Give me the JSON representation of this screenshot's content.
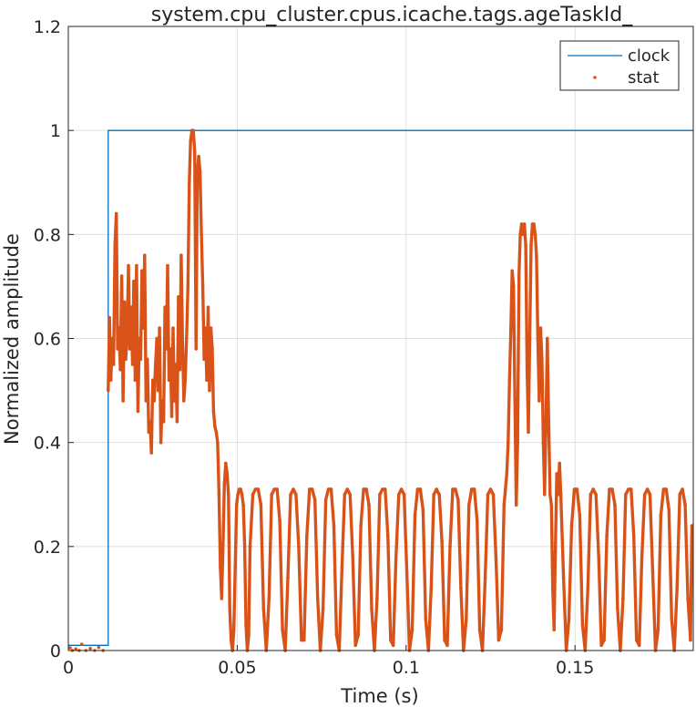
{
  "chart_data": {
    "type": "line",
    "title": "system.cpu_cluster.cpus.icache.tags.ageTaskId_",
    "xlabel": "Time (s)",
    "ylabel": "Normalized amplitude",
    "xlim": [
      0,
      0.185
    ],
    "ylim": [
      0,
      1.2
    ],
    "xticks": [
      0,
      0.05,
      0.1,
      0.15
    ],
    "xtick_labels": [
      "0",
      "0.05",
      "0.1",
      "0.15"
    ],
    "yticks": [
      0,
      0.2,
      0.4,
      0.6,
      0.8,
      1,
      1.2
    ],
    "ytick_labels": [
      "0",
      "0.2",
      "0.4",
      "0.6",
      "0.8",
      "1",
      "1.2"
    ],
    "grid": true,
    "legend_position": "top-right",
    "colors": {
      "clock": "#0072bd",
      "stat": "#d95319",
      "grid": "#dfdfdf",
      "axis": "#262626"
    },
    "series": [
      {
        "name": "clock",
        "style": "line",
        "x": [
          0,
          0.0118,
          0.0118,
          0.185
        ],
        "y": [
          0.01,
          0.01,
          1.0,
          1.0
        ]
      },
      {
        "name": "stat",
        "style": "points",
        "segments": [
          {
            "x": [
              0.0118,
              0.0122,
              0.0126,
              0.013,
              0.0134,
              0.0138,
              0.0142,
              0.0146,
              0.015,
              0.0154,
              0.0158,
              0.0162,
              0.0166,
              0.017,
              0.0174,
              0.0178,
              0.0182,
              0.0186,
              0.019,
              0.0194,
              0.0198,
              0.0202,
              0.0206,
              0.021,
              0.0214,
              0.0218,
              0.0222,
              0.0226,
              0.023,
              0.0234,
              0.0238,
              0.0242,
              0.0246,
              0.025,
              0.0254,
              0.0258,
              0.0262,
              0.0266,
              0.027,
              0.0274,
              0.0278,
              0.0282,
              0.0286,
              0.029,
              0.0294,
              0.0298,
              0.0302,
              0.0306,
              0.031,
              0.0314,
              0.0318,
              0.0322,
              0.0326,
              0.033,
              0.0334,
              0.0338,
              0.0342,
              0.0346,
              0.035,
              0.0354,
              0.0358,
              0.0362,
              0.0366,
              0.037,
              0.0374,
              0.0378,
              0.0382,
              0.0386,
              0.039,
              0.0394,
              0.0398,
              0.0402,
              0.0406,
              0.041,
              0.0414,
              0.0418,
              0.0422,
              0.0426,
              0.043,
              0.0434,
              0.0438,
              0.0442,
              0.0446,
              0.045,
              0.0454,
              0.0458,
              0.0462,
              0.0466,
              0.047,
              0.0474,
              0.0478,
              0.0482,
              0.0486,
              0.049,
              0.0494,
              0.0498,
              0.0502,
              0.0506,
              0.051,
              0.0514,
              0.0518,
              0.0522,
              0.0526,
              0.053,
              0.0534,
              0.0538
            ],
            "y": [
              0.5,
              0.64,
              0.52,
              0.6,
              0.55,
              0.78,
              0.84,
              0.58,
              0.62,
              0.54,
              0.72,
              0.48,
              0.67,
              0.56,
              0.6,
              0.74,
              0.58,
              0.66,
              0.55,
              0.71,
              0.52,
              0.74,
              0.46,
              0.6,
              0.56,
              0.73,
              0.62,
              0.76,
              0.48,
              0.56,
              0.42,
              0.44,
              0.38,
              0.52,
              0.48,
              0.55,
              0.6,
              0.5,
              0.62,
              0.4,
              0.48,
              0.44,
              0.66,
              0.58,
              0.74,
              0.52,
              0.58,
              0.45,
              0.62,
              0.48,
              0.55,
              0.44,
              0.68,
              0.54,
              0.76,
              0.6,
              0.48,
              0.52,
              0.6,
              0.7,
              0.9,
              0.98,
              1.0,
              1.0,
              0.96,
              0.58,
              0.92,
              0.95,
              0.92,
              0.8,
              0.7,
              0.56,
              0.62,
              0.52,
              0.66,
              0.5,
              0.62,
              0.58,
              0.46,
              0.43,
              0.42,
              0.4,
              0.3,
              0.16,
              0.1,
              0.2,
              0.32,
              0.36,
              0.34,
              0.3,
              0.08,
              0.02,
              0.0,
              0.04,
              0.16,
              0.28,
              0.3,
              0.31,
              0.31,
              0.3,
              0.28,
              0.2,
              0.05,
              0.0,
              0.03,
              0.2
            ]
          },
          {
            "x": [
              0.0538,
              0.0546,
              0.0554,
              0.0562,
              0.057,
              0.0578,
              0.0586,
              0.0594,
              0.0602,
              0.061,
              0.0618,
              0.0626,
              0.0634,
              0.0642,
              0.065,
              0.0658,
              0.0666,
              0.0674,
              0.0682,
              0.069,
              0.0698,
              0.0706,
              0.0714,
              0.0722,
              0.073,
              0.0738,
              0.0746,
              0.0754,
              0.0762,
              0.077,
              0.0778,
              0.0786,
              0.0794,
              0.0802,
              0.081,
              0.0818,
              0.0826,
              0.0834,
              0.0842,
              0.085,
              0.0858,
              0.0866,
              0.0874,
              0.0882,
              0.089,
              0.0898,
              0.0906,
              0.0914,
              0.0922,
              0.093,
              0.0938,
              0.0946,
              0.0954,
              0.0962,
              0.097,
              0.0978,
              0.0986,
              0.0994,
              0.1002,
              0.101,
              0.1018,
              0.1026,
              0.1034,
              0.1042,
              0.105,
              0.1058,
              0.1066,
              0.1074,
              0.1082,
              0.109,
              0.1098,
              0.1106,
              0.1114,
              0.1122,
              0.113,
              0.1138,
              0.1146,
              0.1154,
              0.1162,
              0.117,
              0.1178,
              0.1186,
              0.1194,
              0.1202,
              0.121,
              0.1218,
              0.1226,
              0.1234,
              0.1242,
              0.125,
              0.1258,
              0.1266,
              0.1274,
              0.1282,
              0.129
            ],
            "y": [
              0.2,
              0.3,
              0.31,
              0.31,
              0.28,
              0.08,
              0.0,
              0.1,
              0.3,
              0.31,
              0.31,
              0.25,
              0.04,
              0.0,
              0.14,
              0.3,
              0.31,
              0.3,
              0.2,
              0.02,
              0.02,
              0.22,
              0.31,
              0.31,
              0.29,
              0.1,
              0.0,
              0.08,
              0.29,
              0.31,
              0.31,
              0.24,
              0.03,
              0.0,
              0.16,
              0.3,
              0.31,
              0.3,
              0.18,
              0.01,
              0.03,
              0.24,
              0.31,
              0.31,
              0.28,
              0.08,
              0.0,
              0.1,
              0.3,
              0.31,
              0.31,
              0.22,
              0.02,
              0.01,
              0.18,
              0.3,
              0.31,
              0.3,
              0.15,
              0.0,
              0.04,
              0.26,
              0.31,
              0.31,
              0.27,
              0.06,
              0.0,
              0.12,
              0.3,
              0.31,
              0.3,
              0.21,
              0.02,
              0.01,
              0.2,
              0.31,
              0.31,
              0.29,
              0.12,
              0.0,
              0.06,
              0.28,
              0.31,
              0.31,
              0.25,
              0.04,
              0.0,
              0.14,
              0.3,
              0.31,
              0.3,
              0.18,
              0.02,
              0.04,
              0.28
            ]
          },
          {
            "x": [
              0.129,
              0.1294,
              0.1298,
              0.1302,
              0.1306,
              0.131,
              0.1314,
              0.1318,
              0.1322,
              0.1326,
              0.133,
              0.1334,
              0.1338,
              0.1342,
              0.1346,
              0.135,
              0.1354,
              0.1358,
              0.1362,
              0.1366,
              0.137,
              0.1374,
              0.1378,
              0.1382,
              0.1386,
              0.139,
              0.1394,
              0.1398,
              0.1402,
              0.1406,
              0.141,
              0.1414,
              0.1418,
              0.1422,
              0.1426,
              0.143,
              0.1434,
              0.1438,
              0.1442,
              0.1446,
              0.145,
              0.1454,
              0.1458
            ],
            "y": [
              0.28,
              0.31,
              0.34,
              0.4,
              0.52,
              0.62,
              0.73,
              0.7,
              0.48,
              0.28,
              0.4,
              0.72,
              0.8,
              0.82,
              0.8,
              0.82,
              0.78,
              0.54,
              0.42,
              0.6,
              0.78,
              0.82,
              0.82,
              0.8,
              0.76,
              0.6,
              0.48,
              0.62,
              0.56,
              0.4,
              0.3,
              0.44,
              0.6,
              0.44,
              0.3,
              0.28,
              0.12,
              0.04,
              0.2,
              0.34,
              0.3,
              0.36,
              0.3
            ]
          },
          {
            "x": [
              0.1458,
              0.1466,
              0.1474,
              0.1482,
              0.149,
              0.1498,
              0.1506,
              0.1514,
              0.1522,
              0.153,
              0.1538,
              0.1546,
              0.1554,
              0.1562,
              0.157,
              0.1578,
              0.1586,
              0.1594,
              0.1602,
              0.161,
              0.1618,
              0.1626,
              0.1634,
              0.1642,
              0.165,
              0.1658,
              0.1666,
              0.1674,
              0.1682,
              0.169,
              0.1698,
              0.1706,
              0.1714,
              0.1722,
              0.173,
              0.1738,
              0.1746,
              0.1754,
              0.1762,
              0.177,
              0.1778,
              0.1786,
              0.1794,
              0.1802,
              0.181,
              0.1818,
              0.1826,
              0.1834,
              0.1842,
              0.1846
            ],
            "y": [
              0.3,
              0.14,
              0.0,
              0.06,
              0.24,
              0.31,
              0.31,
              0.26,
              0.05,
              0.0,
              0.12,
              0.3,
              0.31,
              0.3,
              0.18,
              0.01,
              0.02,
              0.22,
              0.31,
              0.31,
              0.28,
              0.08,
              0.0,
              0.1,
              0.3,
              0.31,
              0.31,
              0.22,
              0.02,
              0.01,
              0.18,
              0.3,
              0.31,
              0.3,
              0.15,
              0.0,
              0.04,
              0.26,
              0.31,
              0.31,
              0.27,
              0.06,
              0.0,
              0.12,
              0.3,
              0.31,
              0.28,
              0.1,
              0.02,
              0.24
            ]
          }
        ],
        "low_points": {
          "x": [
            0.0005,
            0.0012,
            0.0022,
            0.0032,
            0.004,
            0.0052,
            0.0065,
            0.0078,
            0.009,
            0.0103
          ],
          "y": [
            0.005,
            0.0,
            0.003,
            0.0,
            0.012,
            0.0,
            0.004,
            0.0,
            0.006,
            0.0
          ]
        }
      }
    ]
  }
}
